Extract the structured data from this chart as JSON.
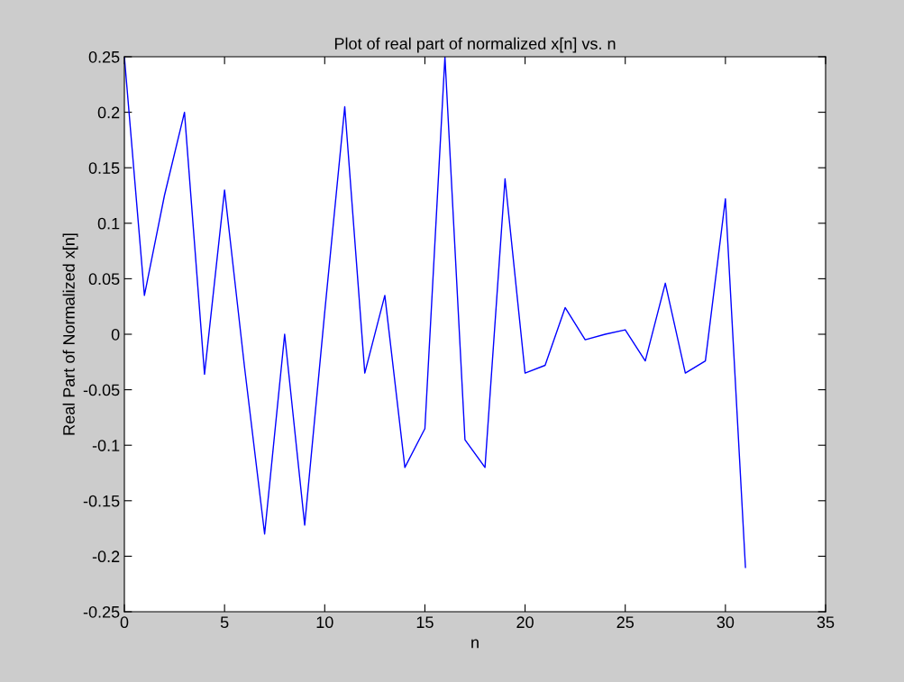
{
  "chart_data": {
    "type": "line",
    "title": "Plot of real part of normalized x[n] vs. n",
    "xlabel": "n",
    "ylabel": "Real Part of Normalized x[n]",
    "x": [
      0,
      1,
      2,
      3,
      4,
      5,
      6,
      7,
      8,
      9,
      10,
      11,
      12,
      13,
      14,
      15,
      16,
      17,
      18,
      19,
      20,
      21,
      22,
      23,
      24,
      25,
      26,
      27,
      28,
      29,
      30,
      31
    ],
    "series": [
      {
        "color": "#0000ff",
        "values": [
          0.25,
          0.035,
          0.125,
          0.2,
          -0.036,
          0.13,
          -0.03,
          -0.18,
          0.0,
          -0.172,
          0.02,
          0.205,
          -0.035,
          0.035,
          -0.12,
          -0.085,
          0.25,
          -0.095,
          -0.12,
          0.14,
          -0.035,
          -0.028,
          0.024,
          -0.005,
          0.0,
          0.004,
          -0.024,
          0.046,
          -0.035,
          -0.024,
          0.122,
          -0.21
        ]
      }
    ],
    "xlim": [
      0,
      35
    ],
    "xticks": [
      0,
      5,
      10,
      15,
      20,
      25,
      30,
      35
    ],
    "ylim": [
      -0.25,
      0.25
    ],
    "yticks": [
      {
        "value": -0.25,
        "label": "-0.25"
      },
      {
        "value": -0.2,
        "label": "-0.2"
      },
      {
        "value": -0.15,
        "label": "-0.15"
      },
      {
        "value": -0.1,
        "label": "-0.1"
      },
      {
        "value": -0.05,
        "label": "-0.05"
      },
      0,
      0.05,
      0.1,
      0.15,
      0.2,
      0.25
    ],
    "grid": false,
    "legend": false,
    "marker": "none",
    "line_style": "solid"
  }
}
